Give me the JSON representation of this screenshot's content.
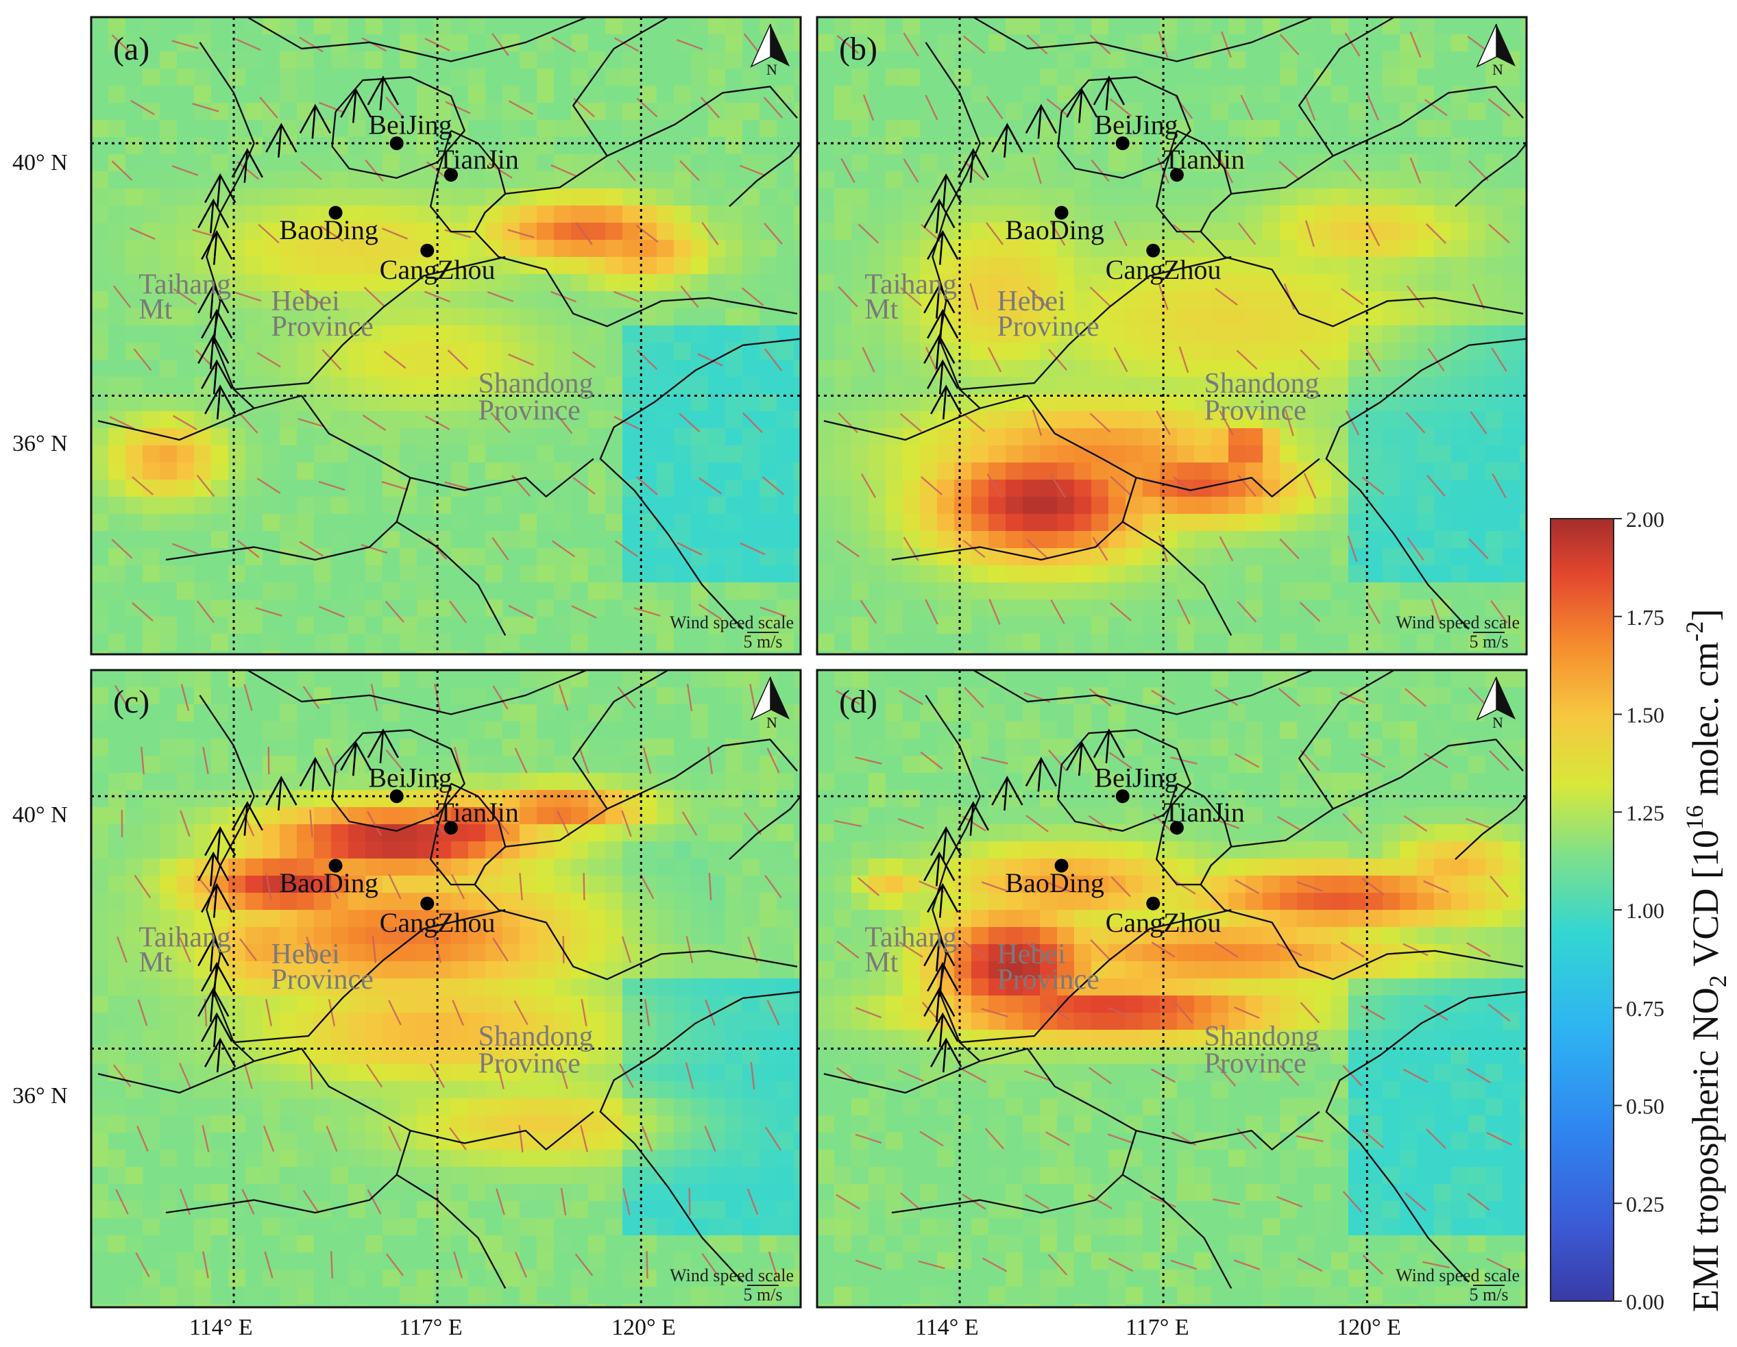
{
  "colors": {
    "land_base": "#4a9fe8",
    "ocean_base": "#3f8fe2",
    "boundary": "#111111",
    "wind_arrow": "#c9605a",
    "city_dot": "#000000",
    "region_label": "#7a7a7a",
    "colormap": [
      "#3a3aa6",
      "#3b5cd6",
      "#2f86f0",
      "#2fb4f2",
      "#33d6d2",
      "#7fe08a",
      "#d8e83a",
      "#f7c640",
      "#f58b2e",
      "#e3462e",
      "#a52d2d"
    ]
  },
  "axes": {
    "lat_labels": [
      "40° N",
      "36° N",
      "40° N",
      "36° N"
    ],
    "lon_labels": [
      "114° E",
      "117° E",
      "120° E",
      "114° E",
      "117° E",
      "120° E"
    ]
  },
  "panels": [
    {
      "label": "(a)",
      "north": "N",
      "cities": [
        "BeiJing",
        "TianJin",
        "BaoDing",
        "CangZhou"
      ],
      "regions": [
        "Taihang",
        "Mt",
        "Hebei",
        "Province",
        "Shandong",
        "Province"
      ],
      "scale_title": "Wind speed scale",
      "scale_value": "5 m/s",
      "hotspots": [
        {
          "lon": 119.2,
          "lat": 38.6,
          "value": 1.7,
          "rx": 1.4,
          "ry": 0.5
        },
        {
          "lon": 120.0,
          "lat": 38.3,
          "value": 1.55,
          "rx": 1.0,
          "ry": 0.5
        },
        {
          "lon": 113.0,
          "lat": 35.0,
          "value": 1.5,
          "rx": 0.8,
          "ry": 0.6
        },
        {
          "lon": 115.8,
          "lat": 38.3,
          "value": 1.3,
          "rx": 2.2,
          "ry": 0.8
        },
        {
          "lon": 116.8,
          "lat": 36.6,
          "value": 1.25,
          "rx": 1.8,
          "ry": 0.8
        },
        {
          "lon": 121.0,
          "lat": 33.6,
          "value": 0.7,
          "rx": 1.5,
          "ry": 0.6
        }
      ]
    },
    {
      "label": "(b)",
      "north": "N",
      "cities": [
        "BeiJing",
        "TianJin",
        "BaoDing",
        "CangZhou"
      ],
      "regions": [
        "Taihang",
        "Mt",
        "Hebei",
        "Province",
        "Shandong",
        "Province"
      ],
      "scale_title": "Wind speed scale",
      "scale_value": "5 m/s",
      "hotspots": [
        {
          "lon": 115.2,
          "lat": 34.3,
          "value": 1.95,
          "rx": 1.6,
          "ry": 0.9
        },
        {
          "lon": 117.5,
          "lat": 34.6,
          "value": 1.75,
          "rx": 1.5,
          "ry": 0.6
        },
        {
          "lon": 118.2,
          "lat": 35.2,
          "value": 1.8,
          "rx": 0.5,
          "ry": 0.35
        },
        {
          "lon": 116.0,
          "lat": 35.0,
          "value": 1.6,
          "rx": 2.5,
          "ry": 0.9
        },
        {
          "lon": 114.6,
          "lat": 37.6,
          "value": 1.35,
          "rx": 1.3,
          "ry": 1.2
        },
        {
          "lon": 118.0,
          "lat": 37.2,
          "value": 1.3,
          "rx": 3.0,
          "ry": 1.2
        },
        {
          "lon": 120.0,
          "lat": 38.6,
          "value": 1.35,
          "rx": 1.5,
          "ry": 0.6
        }
      ]
    },
    {
      "label": "(c)",
      "north": "N",
      "cities": [
        "BeiJing",
        "TianJin",
        "BaoDing",
        "CangZhou"
      ],
      "regions": [
        "Taihang",
        "Mt",
        "Hebei",
        "Province",
        "Shandong",
        "Province"
      ],
      "scale_title": "Wind speed scale",
      "scale_value": "5 m/s",
      "hotspots": [
        {
          "lon": 116.4,
          "lat": 39.3,
          "value": 1.95,
          "rx": 2.0,
          "ry": 0.55
        },
        {
          "lon": 114.8,
          "lat": 38.6,
          "value": 1.9,
          "rx": 1.4,
          "ry": 0.5
        },
        {
          "lon": 117.4,
          "lat": 39.5,
          "value": 1.85,
          "rx": 1.0,
          "ry": 0.5
        },
        {
          "lon": 118.8,
          "lat": 39.8,
          "value": 1.7,
          "rx": 1.2,
          "ry": 0.35
        },
        {
          "lon": 116.5,
          "lat": 37.8,
          "value": 1.65,
          "rx": 2.6,
          "ry": 1.0
        },
        {
          "lon": 117.0,
          "lat": 36.3,
          "value": 1.45,
          "rx": 2.5,
          "ry": 0.8
        },
        {
          "lon": 118.5,
          "lat": 34.8,
          "value": 1.35,
          "rx": 2.0,
          "ry": 0.6
        },
        {
          "lon": 114.5,
          "lat": 37.6,
          "value": 1.5,
          "rx": 1.0,
          "ry": 0.8
        }
      ]
    },
    {
      "label": "(d)",
      "north": "N",
      "cities": [
        "BeiJing",
        "TianJin",
        "BaoDing",
        "CangZhou"
      ],
      "regions": [
        "Taihang",
        "Mt",
        "Hebei",
        "Province",
        "Shandong",
        "Province"
      ],
      "scale_title": "Wind speed scale",
      "scale_value": "5 m/s",
      "hotspots": [
        {
          "lon": 114.8,
          "lat": 37.3,
          "value": 1.95,
          "rx": 1.2,
          "ry": 0.9
        },
        {
          "lon": 116.2,
          "lat": 36.6,
          "value": 1.85,
          "rx": 2.5,
          "ry": 0.45
        },
        {
          "lon": 119.6,
          "lat": 38.4,
          "value": 1.75,
          "rx": 2.2,
          "ry": 0.5
        },
        {
          "lon": 117.8,
          "lat": 37.5,
          "value": 1.6,
          "rx": 2.8,
          "ry": 0.55
        },
        {
          "lon": 115.6,
          "lat": 38.6,
          "value": 1.55,
          "rx": 1.8,
          "ry": 0.6
        },
        {
          "lon": 121.3,
          "lat": 38.9,
          "value": 1.45,
          "rx": 1.0,
          "ry": 0.5
        },
        {
          "lon": 113.0,
          "lat": 38.6,
          "value": 1.4,
          "rx": 0.5,
          "ry": 0.3
        }
      ]
    }
  ],
  "colorbar": {
    "ticks": [
      "2.00",
      "1.75",
      "1.50",
      "1.25",
      "1.00",
      "0.75",
      "0.50",
      "0.25",
      "0.00"
    ],
    "label_main": "EMI tropospheric NO",
    "label_sub2": "2",
    "label_vcd": " VCD [10",
    "label_sup16": "16",
    "label_units": " molec. cm",
    "label_supneg2": "-2",
    "label_end": "]"
  }
}
